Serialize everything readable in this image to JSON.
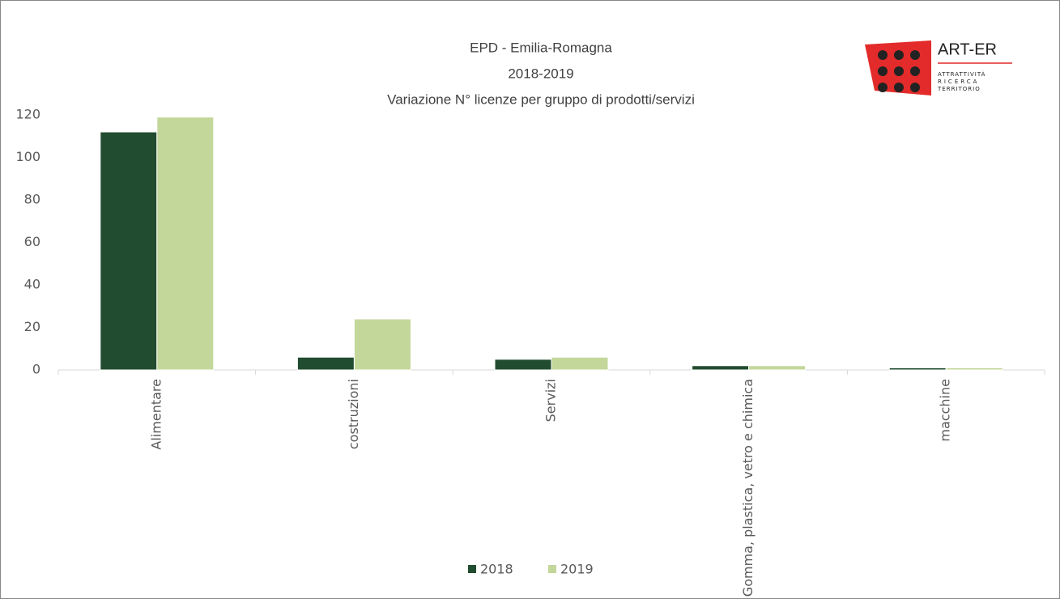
{
  "chart_data": {
    "type": "bar",
    "title": "EPD - Emilia-Romagna",
    "subtitle": "2018-2019",
    "annotation": "Variazione N° licenze per gruppo di prodotti/servizi",
    "logo": {
      "name": "ART-ER",
      "lines": [
        "ATTRATTIVITÀ",
        "RICERCA",
        "TERRITORIO"
      ]
    },
    "categories": [
      "Alimentare",
      "costruzioni",
      "Servizi",
      "Gomma, plastica, vetro e chimica",
      "macchine"
    ],
    "series": [
      {
        "name": "2018",
        "color": "#214c2f",
        "values": [
          112,
          6,
          5,
          2,
          1
        ]
      },
      {
        "name": "2019",
        "color": "#c4d79b",
        "values": [
          119,
          24,
          6,
          2,
          1
        ]
      }
    ],
    "ylim": [
      0,
      120
    ],
    "yticks": [
      0,
      20,
      40,
      60,
      80,
      100,
      120
    ],
    "legend": "bottom"
  }
}
